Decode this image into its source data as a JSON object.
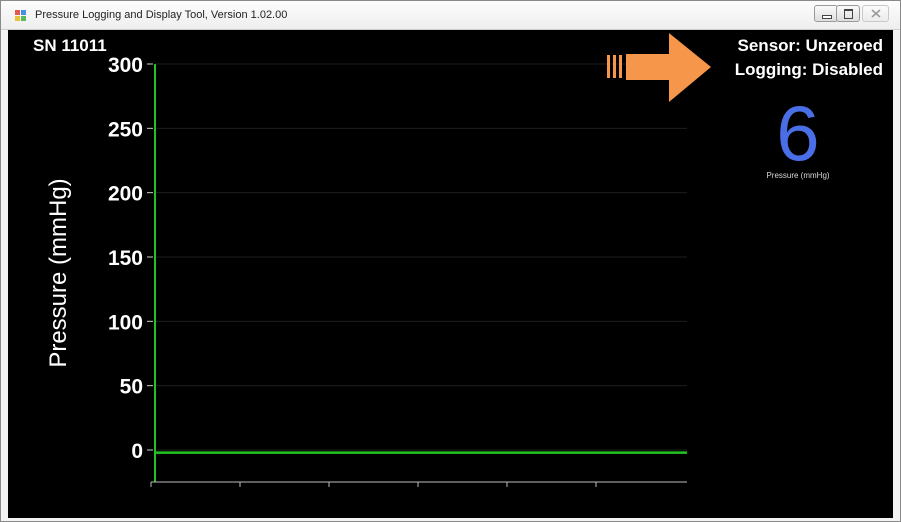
{
  "window": {
    "title": "Pressure Logging and Display Tool, Version 1.02.00",
    "icon": "app-grid-icon",
    "controls": [
      "minimize-icon",
      "restore-icon",
      "close-icon"
    ]
  },
  "header": {
    "serial": "SN 11011",
    "sensor_status": "Sensor: Unzeroed",
    "logging_status": "Logging: Disabled"
  },
  "readout": {
    "value": "6",
    "label": "Pressure (mmHg)",
    "color": "#4a6ee6"
  },
  "chart_data": {
    "type": "line",
    "ylabel": "Pressure (mmHg)",
    "ylim": [
      0,
      300
    ],
    "yticks": [
      "0",
      "50",
      "100",
      "150",
      "200",
      "250",
      "300"
    ],
    "x_tick_count": 6,
    "grid": true,
    "series": [
      {
        "color": "#22c422",
        "values": [
          -2,
          -2,
          -2,
          -2,
          -2,
          -2
        ]
      }
    ]
  },
  "annotation": {
    "type": "arrow",
    "color": "#f5964a",
    "points_to": "logging-status"
  }
}
